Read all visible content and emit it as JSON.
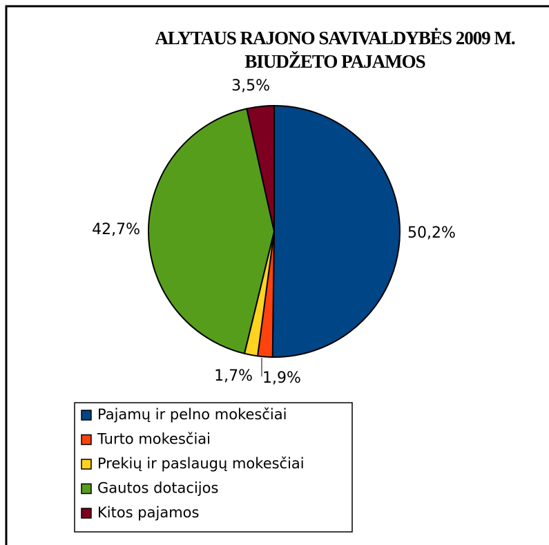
{
  "chart_data": {
    "type": "pie",
    "title_lines": [
      "ALYTAUS RAJONO SAVIVALDYBĖS 2009 M.",
      "BIUDŽETO PAJAMOS"
    ],
    "categories": [
      "Pajamų ir pelno mokesčiai",
      "Turto mokesčiai",
      "Prekių ir paslaugų mokesčiai",
      "Gautos dotacijos",
      "Kitos pajamos"
    ],
    "values": [
      50.2,
      1.9,
      1.7,
      42.7,
      3.5
    ],
    "value_labels": [
      "50,2%",
      "1,9%",
      "1,7%",
      "42,7%",
      "3,5%"
    ],
    "colors": [
      "#004586",
      "#ff420e",
      "#ffd320",
      "#579d1c",
      "#7e0021"
    ],
    "legend": "bottom-left"
  }
}
